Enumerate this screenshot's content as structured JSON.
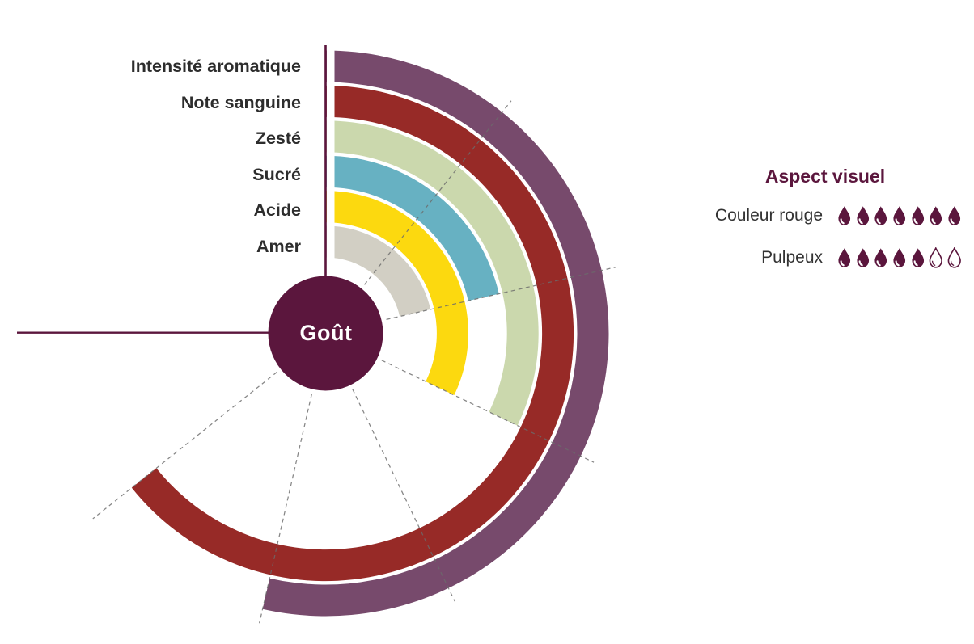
{
  "chart_data": {
    "type": "bar",
    "variant": "radial-polar-bars",
    "title": "",
    "center_label": "Goût",
    "scale": {
      "min": 0,
      "max": 7,
      "sweep_deg": 270,
      "start": "top",
      "direction": "clockwise",
      "gridline_step": 1,
      "grid_on": true
    },
    "series": [
      {
        "label": "Intensité aromatique",
        "value": 5,
        "color": "#774a6c"
      },
      {
        "label": "Note sanguine",
        "value": 6,
        "color": "#972a27"
      },
      {
        "label": "Zesté",
        "value": 3,
        "color": "#cbd8ad"
      },
      {
        "label": "Sucré",
        "value": 2,
        "color": "#67b1c2"
      },
      {
        "label": "Acide",
        "value": 3,
        "color": "#fcd90f"
      },
      {
        "label": "Amer",
        "value": 2,
        "color": "#d2cfc4"
      }
    ]
  },
  "aspect_panel": {
    "title": "Aspect visuel",
    "rows": [
      {
        "label": "Couleur rouge",
        "filled": 7,
        "total": 7
      },
      {
        "label": "Pulpeux",
        "filled": 5,
        "total": 7
      }
    ],
    "icon": "drop-icon"
  },
  "colors": {
    "maroon": "#5b163d",
    "label_text": "#2d2d2d",
    "gridline": "#6b6b6b",
    "background": "#ffffff"
  }
}
